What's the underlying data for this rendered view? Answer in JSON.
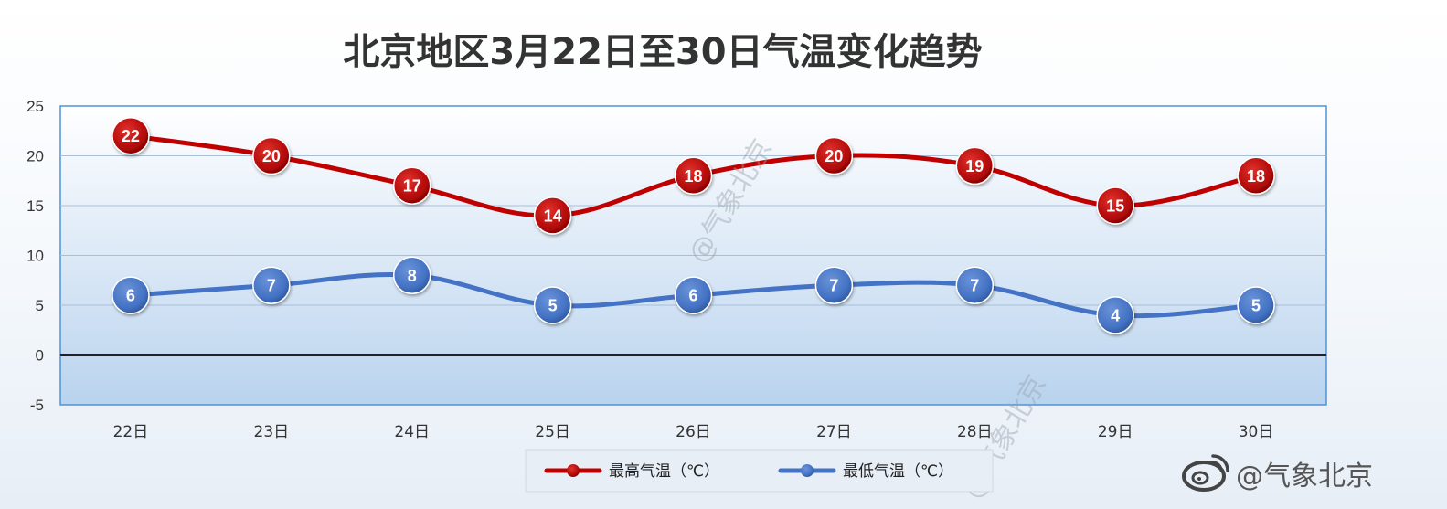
{
  "chart_data": {
    "type": "line",
    "title": "北京地区3月22日至30日气温变化趋势",
    "categories": [
      "22日",
      "23日",
      "24日",
      "25日",
      "26日",
      "27日",
      "28日",
      "29日",
      "30日"
    ],
    "series": [
      {
        "name": "最高气温（℃）",
        "color": "#c00000",
        "values": [
          22,
          20,
          17,
          14,
          18,
          20,
          19,
          15,
          18
        ]
      },
      {
        "name": "最低气温（℃）",
        "color": "#4472c4",
        "values": [
          6,
          7,
          8,
          5,
          6,
          7,
          7,
          4,
          5
        ]
      }
    ],
    "ylim": [
      -5,
      25
    ],
    "yticks": [
      -5,
      0,
      5,
      10,
      15,
      20,
      25
    ],
    "grid": true,
    "legend_position": "bottom",
    "data_labels": true
  },
  "watermark": {
    "bottom_right": "@气象北京",
    "bottom_right_icon": "weibo-icon",
    "diagonal_1": "@气象北京",
    "diagonal_2": "@气象北京"
  }
}
